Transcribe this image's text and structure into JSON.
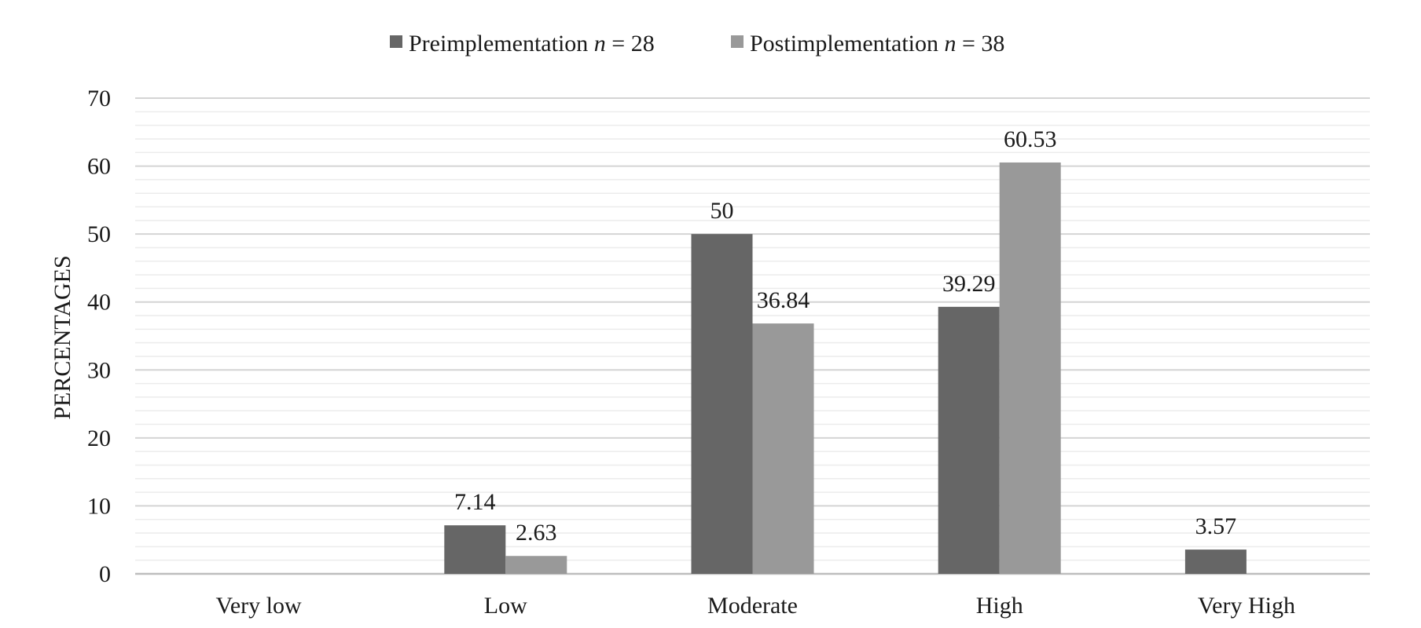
{
  "chart_data": {
    "type": "bar",
    "title": "",
    "xlabel": "",
    "ylabel": "PERCENTAGES",
    "ylim": [
      0,
      70
    ],
    "yticks": [
      "0",
      "10",
      "20",
      "30",
      "40",
      "50",
      "60",
      "70"
    ],
    "ytick_values": [
      0,
      10,
      20,
      30,
      40,
      50,
      60,
      70
    ],
    "minor_grid_step": 2,
    "grid": true,
    "legend_position": "top",
    "categories": [
      "Very low",
      "Low",
      "Moderate",
      "High",
      "Very High"
    ],
    "series": [
      {
        "name": "Preimplementation",
        "n_label": "n",
        "n_text": " = 28",
        "color": "#666666",
        "values": [
          0,
          7.14,
          50,
          39.29,
          3.57
        ],
        "labels": [
          "",
          "7.14",
          "50",
          "39.29",
          "3.57"
        ]
      },
      {
        "name": "Postimplementation",
        "n_label": "n",
        "n_text": " = 38",
        "color": "#999999",
        "values": [
          0,
          2.63,
          36.84,
          60.53,
          0
        ],
        "labels": [
          "",
          "2.63",
          "36.84",
          "60.53",
          ""
        ]
      }
    ]
  }
}
